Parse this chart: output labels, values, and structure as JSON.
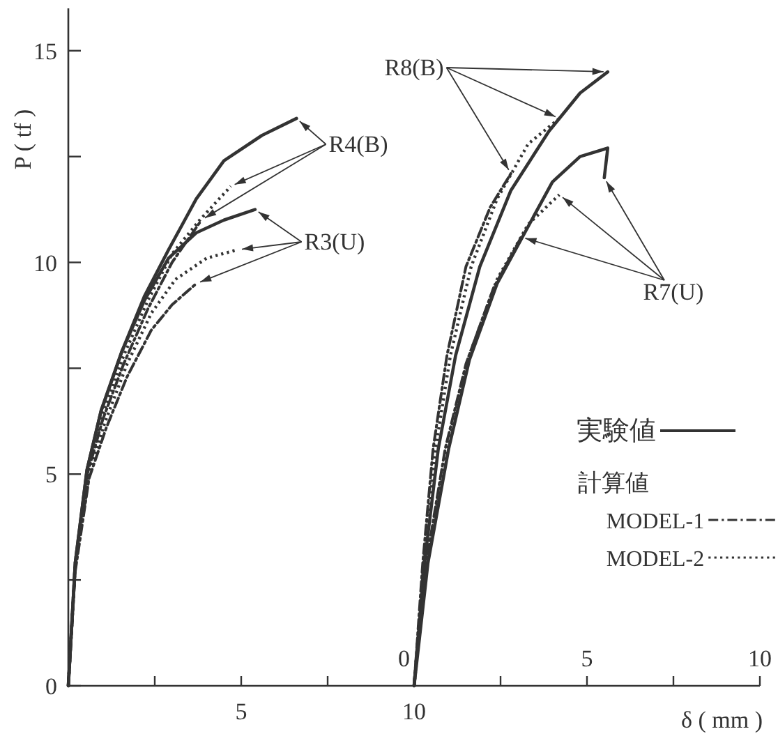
{
  "chart_data": {
    "type": "line",
    "xlabel": "δ ( mm )",
    "ylabel": "P ( tf )",
    "legend": "bottom right",
    "legend_title": "計算値",
    "xlim": [
      0,
      20
    ],
    "xticks": [
      {
        "value": 2.5,
        "label": null
      },
      5,
      {
        "value": 7.5,
        "label": null
      },
      10,
      {
        "value": 12.5,
        "label": null
      },
      {
        "value": 15,
        "label": null
      },
      {
        "value": 17.5,
        "label": null
      },
      {
        "value": 20,
        "label": null
      }
    ],
    "x2lim": [
      -10,
      10
    ],
    "x2ticks": [
      0,
      5,
      10
    ],
    "ylim": [
      0,
      16
    ],
    "yticks": [
      0,
      {
        "value": 2.5,
        "label": null
      },
      5,
      {
        "value": 7.5,
        "label": null
      },
      10,
      {
        "value": 12.5,
        "label": null
      },
      15
    ],
    "series": [
      {
        "name": "実験値",
        "color": "#333333",
        "line_style": "solid",
        "x": [
          0,
          0.2,
          0.54,
          0.95,
          1.55,
          2.2,
          2.9,
          3.7,
          4.5,
          5.6,
          6.6
        ],
        "values": [
          0,
          2.9,
          5.1,
          6.5,
          7.9,
          9.2,
          10.3,
          11.5,
          12.4,
          13.0,
          13.4
        ]
      },
      {
        "name": "MODEL-1",
        "color": "#333333",
        "line_style": "dashdot",
        "x": [
          0,
          0.2,
          0.55,
          1.0,
          1.6,
          2.3,
          3.0,
          3.85
        ],
        "values": [
          0,
          2.8,
          5.0,
          6.3,
          7.6,
          8.9,
          10.0,
          11.0
        ]
      },
      {
        "name": "MODEL-2",
        "color": "#333333",
        "line_style": "dotted",
        "x": [
          0,
          0.2,
          0.55,
          1.0,
          1.6,
          2.3,
          3.0,
          3.8,
          4.7
        ],
        "values": [
          0,
          2.9,
          5.1,
          6.4,
          7.8,
          9.1,
          10.2,
          11.0,
          11.8
        ]
      },
      {
        "color": "#333333",
        "line_style": "solid",
        "x": [
          0,
          0.2,
          0.54,
          0.95,
          1.55,
          2.2,
          2.9,
          3.7,
          4.5,
          5.4
        ],
        "values": [
          0,
          2.9,
          5.1,
          6.5,
          7.9,
          9.1,
          10.1,
          10.7,
          11.0,
          11.25
        ]
      },
      {
        "color": "#333333",
        "line_style": "dashdot",
        "x": [
          0,
          0.2,
          0.6,
          1.1,
          1.7,
          2.4,
          3.0,
          3.7
        ],
        "values": [
          0,
          2.7,
          4.9,
          6.1,
          7.3,
          8.4,
          9.0,
          9.5
        ]
      },
      {
        "color": "#333333",
        "line_style": "dotted",
        "x": [
          0,
          0.2,
          0.6,
          1.05,
          1.7,
          2.4,
          3.1,
          4.0,
          4.9
        ],
        "values": [
          0,
          2.8,
          5.0,
          6.2,
          7.6,
          8.8,
          9.6,
          10.1,
          10.3
        ]
      },
      {
        "color": "#333333",
        "line_style": "solid",
        "x": [
          10,
          10.3,
          10.7,
          11.2,
          11.9,
          12.8,
          13.9,
          14.8,
          15.6
        ],
        "values": [
          0,
          2.9,
          5.6,
          7.8,
          9.9,
          11.7,
          13.1,
          14.0,
          14.5
        ]
      },
      {
        "color": "#333333",
        "line_style": "dashdot",
        "x": [
          10,
          10.25,
          10.55,
          10.95,
          11.5,
          12.2,
          12.8
        ],
        "values": [
          0,
          2.9,
          5.6,
          7.8,
          9.9,
          11.3,
          12.1
        ]
      },
      {
        "color": "#333333",
        "line_style": "dotted",
        "x": [
          10,
          10.28,
          10.62,
          11.05,
          11.65,
          12.4,
          13.3,
          14.2
        ],
        "values": [
          0,
          2.9,
          5.6,
          7.8,
          9.9,
          11.5,
          12.8,
          13.4
        ]
      },
      {
        "color": "#333333",
        "line_style": "solid",
        "x": [
          10,
          10.4,
          11.0,
          11.6,
          12.4,
          13.2,
          14.0,
          14.8,
          15.6,
          15.5
        ],
        "values": [
          0,
          2.9,
          5.6,
          7.7,
          9.5,
          10.7,
          11.9,
          12.5,
          12.7,
          12.0
        ]
      },
      {
        "color": "#333333",
        "line_style": "dashdot",
        "x": [
          10,
          10.35,
          10.9,
          11.5,
          12.3,
          13.1
        ],
        "values": [
          0,
          2.9,
          5.6,
          7.6,
          9.4,
          10.6
        ]
      },
      {
        "color": "#333333",
        "line_style": "dotted",
        "x": [
          10,
          10.37,
          10.95,
          11.55,
          12.4,
          13.3,
          14.2
        ],
        "values": [
          0,
          2.9,
          5.6,
          7.7,
          9.6,
          10.9,
          11.6
        ]
      }
    ],
    "annotations": [
      {
        "text": "R4(B)",
        "x": 6.6,
        "y": 13.4
      },
      {
        "text": "R3(U)",
        "x": 5.4,
        "y": 11.25
      },
      {
        "text": "R8(B)",
        "x": 15.6,
        "y": 14.5
      },
      {
        "text": "R7(U)",
        "x": 15.5,
        "y": 12.0
      }
    ]
  }
}
